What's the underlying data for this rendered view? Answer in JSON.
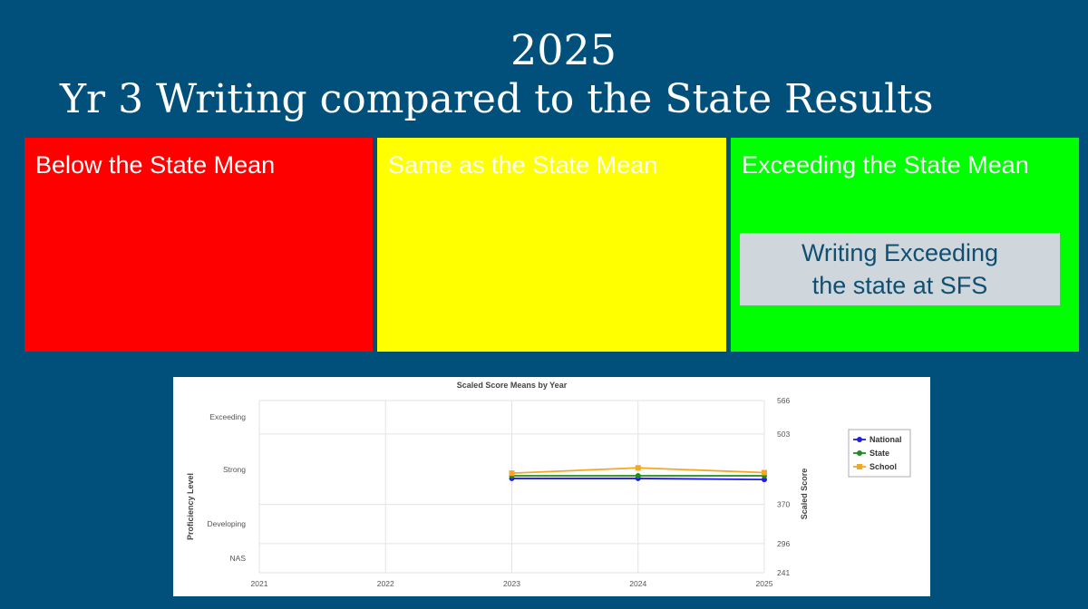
{
  "header": {
    "year": "2025",
    "title": "Yr 3 Writing compared to the State Results"
  },
  "panels": [
    {
      "label": "Below the State Mean",
      "color": "#ff0000"
    },
    {
      "label": "Same as the State Mean",
      "color": "#ffff00"
    },
    {
      "label": "Exceeding the State Mean",
      "color": "#00ff00"
    }
  ],
  "callout": {
    "line1": "Writing Exceeding",
    "line2": "the state at SFS"
  },
  "chart_data": {
    "type": "line",
    "title": "Scaled Score Means by Year",
    "x": [
      "2021",
      "2022",
      "2023",
      "2024",
      "2025"
    ],
    "ylabel_left": "Proficiency Level",
    "ylabel_right": "Scaled Score",
    "ylim": [
      241,
      566
    ],
    "right_ticks": [
      241,
      296,
      370,
      503,
      566
    ],
    "proficiency_levels": [
      {
        "label": "Exceeding",
        "value": 535
      },
      {
        "label": "Strong",
        "value": 436
      },
      {
        "label": "Developing",
        "value": 333
      },
      {
        "label": "NAS",
        "value": 268
      }
    ],
    "grid": true,
    "legend_position": "right",
    "series": [
      {
        "name": "National",
        "color": "#1f1fe0",
        "marker": "circle",
        "values": [
          null,
          null,
          419,
          419,
          417
        ]
      },
      {
        "name": "State",
        "color": "#1e8c1e",
        "marker": "circle",
        "values": [
          null,
          null,
          424,
          424,
          424
        ]
      },
      {
        "name": "School",
        "color": "#f5a623",
        "marker": "square",
        "values": [
          null,
          null,
          429,
          439,
          430
        ]
      }
    ]
  }
}
